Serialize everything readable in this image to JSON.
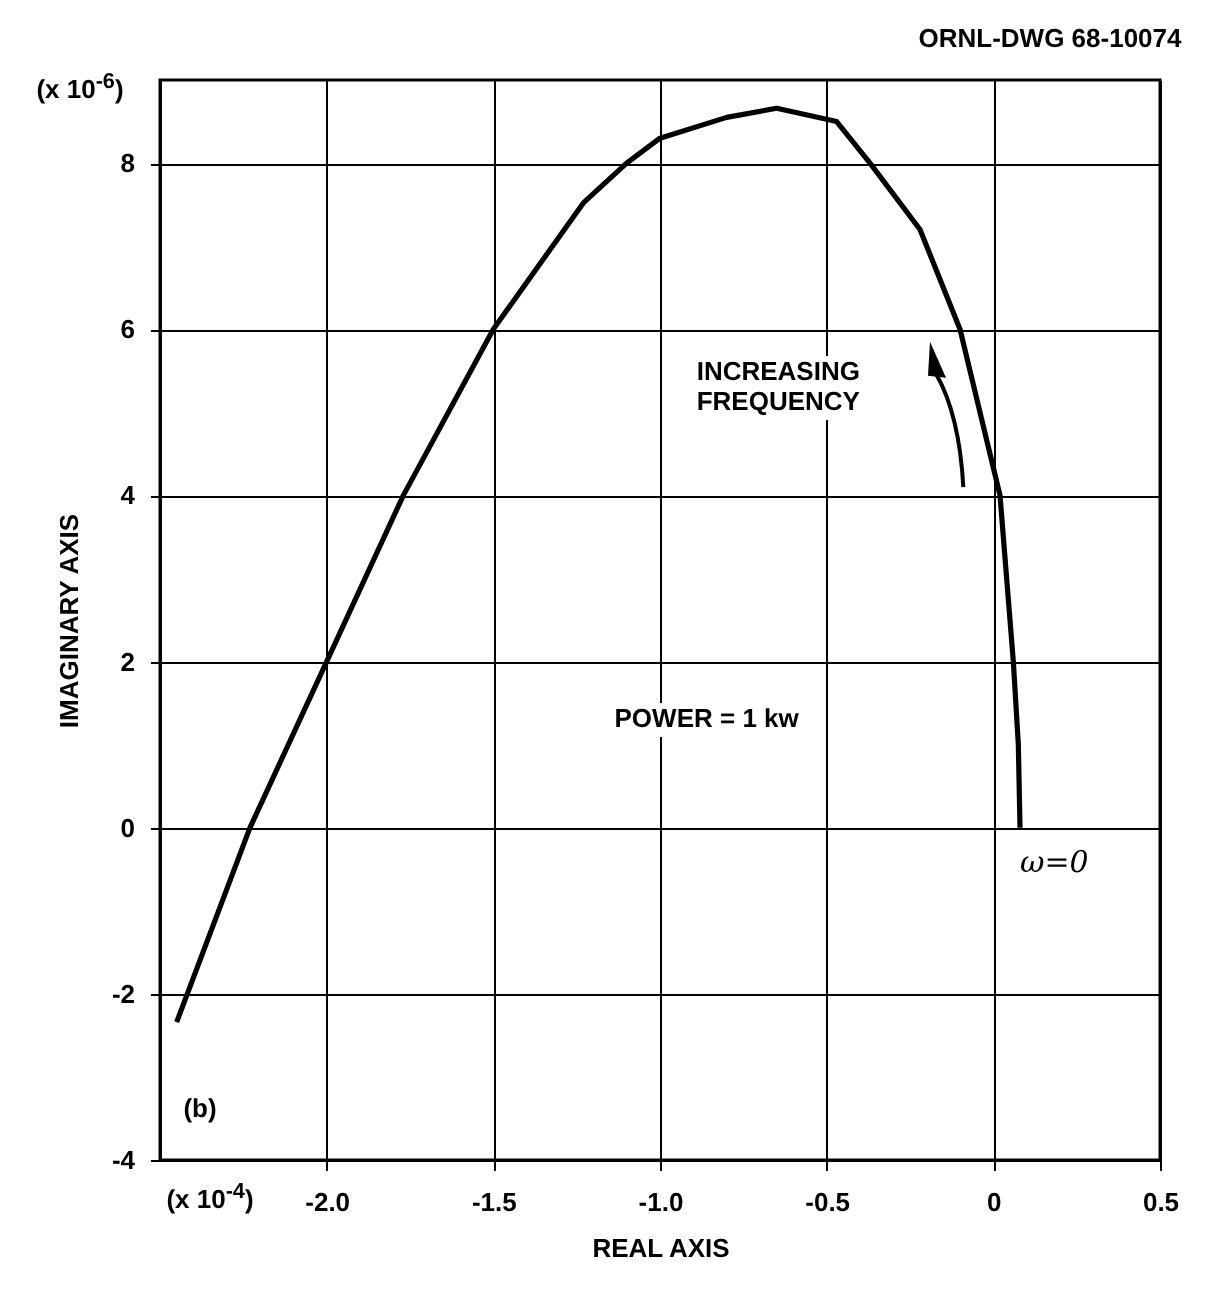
{
  "chart_data": {
    "type": "line",
    "xlabel": "REAL AXIS",
    "ylabel": "IMAGINARY AXIS",
    "xlim": [
      -2.5,
      0.5
    ],
    "ylim": [
      -4,
      9
    ],
    "xticks": [
      {
        "value": -2,
        "label": "-2.0"
      },
      -1.5,
      {
        "value": -1,
        "label": "-1.0"
      },
      -0.5,
      0,
      0.5
    ],
    "yticks": [
      -4,
      -2,
      0,
      2,
      4,
      6,
      8
    ],
    "grid": true,
    "legend": false,
    "marker": "none",
    "line_style": "solid",
    "series": [
      {
        "color": "#000000",
        "x": [
          0.08,
          0.075,
          0.06,
          0.02,
          -0.04,
          -0.1,
          -0.22,
          -0.37,
          -0.47,
          -0.65,
          -0.8,
          -1.0,
          -1.1,
          -1.23,
          -1.5,
          -1.77,
          -2.0,
          -2.23,
          -2.45
        ],
        "values": [
          0,
          1,
          2,
          4,
          5,
          6,
          7.2,
          8,
          8.5,
          8.66,
          8.55,
          8.3,
          8,
          7.52,
          6,
          4,
          2,
          0,
          -2.34
        ]
      }
    ],
    "annotations": [
      "ORNL-DWG 68-10074",
      "(x 10$^{-6}$)",
      "(x 10$^{-4}$)",
      "INCREASING FREQUENCY",
      "POWER = 1 kw",
      "(b)",
      {
        "text": "ω=0",
        "x": 0.08,
        "y": 0
      }
    ]
  }
}
